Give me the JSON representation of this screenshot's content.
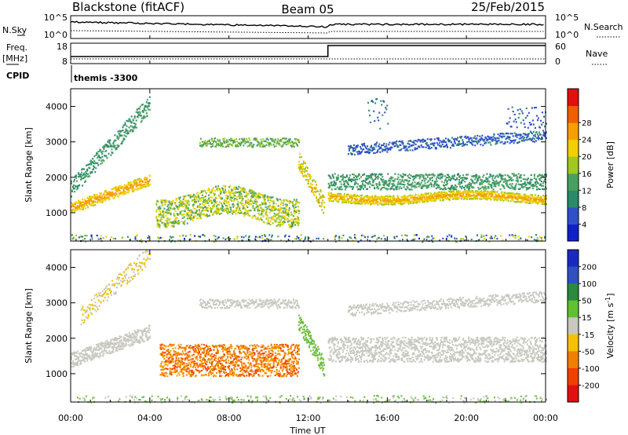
{
  "header": {
    "station": "Blackstone (fitACF)",
    "beam": "Beam 05",
    "date": "25/Feb/2015"
  },
  "top_panels": {
    "nsky_label": "N.Sky",
    "nsearch_label": "N.Search",
    "nsky_ticks": [
      "10^5",
      "10^0"
    ],
    "nsearch_ticks": [
      "10^5",
      "10^0"
    ],
    "freq_label_1": "Freq.",
    "freq_label_2": "[MHz]",
    "freq_ticks": [
      "18",
      "8"
    ],
    "nave_label": "Nave",
    "nave_ticks": [
      "60",
      "0"
    ],
    "cpid_label": "CPID",
    "cpid_value": "themis -3300"
  },
  "chart_data": [
    {
      "type": "heatmap",
      "panel": "power",
      "ylabel": "Slant Range [km]",
      "y_ticks": [
        1000,
        2000,
        3000,
        4000
      ],
      "ylim": [
        200,
        4500
      ],
      "colorbar_label": "Power [dB]",
      "colorbar_ticks": [
        "4",
        "8",
        "12",
        "16",
        "20",
        "24",
        "28"
      ],
      "colorbar_colors": [
        "#1020c8",
        "#3050c8",
        "#2a8a6a",
        "#4aa060",
        "#a0c820",
        "#f0d000",
        "#f5a000",
        "#f06000",
        "#e01010"
      ],
      "colors": {
        "low": "#2050d0",
        "mid": "#40a070",
        "high": "#ff2000"
      }
    },
    {
      "type": "heatmap",
      "panel": "velocity",
      "ylabel": "Slant Range [km]",
      "y_ticks": [
        1000,
        2000,
        3000,
        4000
      ],
      "ylim": [
        200,
        4500
      ],
      "colorbar_label": "Velocity [m s^-1]",
      "colorbar_ticks": [
        "200",
        "100",
        "50",
        "15",
        "-15",
        "-50",
        "-100",
        "-200"
      ],
      "colorbar_colors": [
        "#1a2ac0",
        "#3050c0",
        "#2a8a40",
        "#60c030",
        "#c8c8c0",
        "#f5c000",
        "#f08000",
        "#f04000",
        "#e01010"
      ],
      "colors": {
        "gs": "#c8c8c0",
        "neg": "#f07000",
        "pos": "#70c040"
      }
    }
  ],
  "x_axis": {
    "ticks": [
      "00:00",
      "04:00",
      "08:00",
      "12:00",
      "16:00",
      "20:00",
      "00:00"
    ],
    "tick_hours": [
      0,
      4,
      8,
      12,
      16,
      20,
      24
    ],
    "xlim_hours": [
      0,
      24
    ],
    "label": "Time UT"
  }
}
